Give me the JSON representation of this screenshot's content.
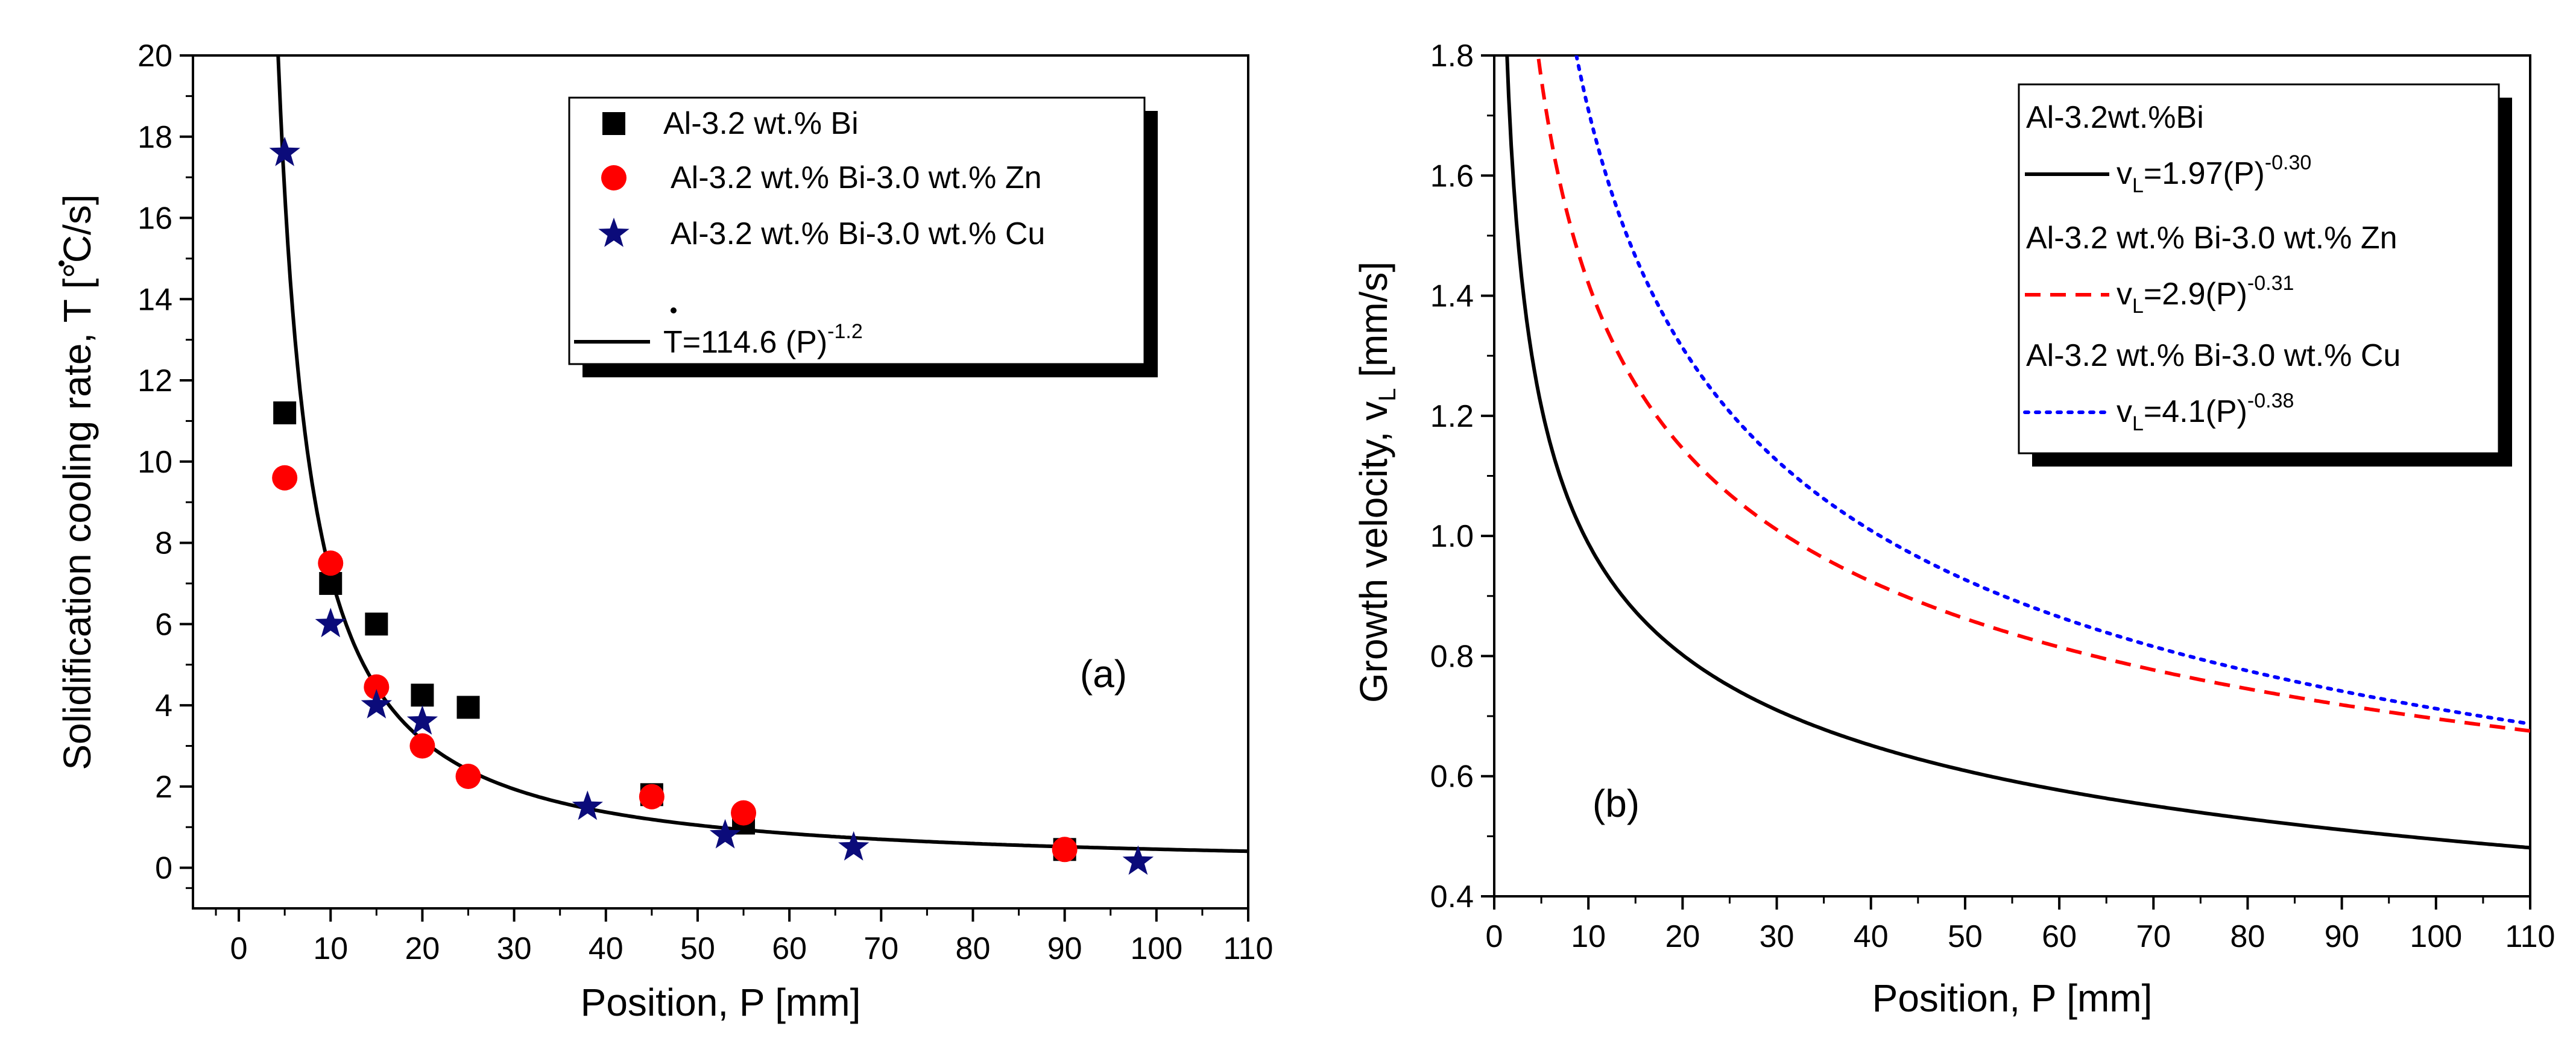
{
  "chart_data": [
    {
      "type": "scatter",
      "panel_label": "(a)",
      "xlabel": "Position, P [mm]",
      "ylabel_main": "Solidification cooling rate, ",
      "ylabel_symbol": "T",
      "ylabel_unit": " [°C/s]",
      "xlim": [
        -5,
        110
      ],
      "ylim": [
        -1,
        20
      ],
      "x_ticks": [
        0,
        10,
        20,
        30,
        40,
        50,
        60,
        70,
        80,
        90,
        100,
        110
      ],
      "x_tick_labels": [
        "0",
        "10",
        "20",
        "30",
        "40",
        "50",
        "60",
        "70",
        "80",
        "90",
        "100",
        "110"
      ],
      "y_ticks": [
        0,
        2,
        4,
        6,
        8,
        10,
        12,
        14,
        16,
        18,
        20
      ],
      "y_tick_labels": [
        "0",
        "2",
        "4",
        "6",
        "8",
        "10",
        "12",
        "14",
        "16",
        "18",
        "20"
      ],
      "series": [
        {
          "name": "Al-3.2 wt.% Bi",
          "marker": "square",
          "color": "#000000",
          "points": [
            [
              5,
              11.2
            ],
            [
              10,
              7.0
            ],
            [
              15,
              6.0
            ],
            [
              20,
              4.25
            ],
            [
              25,
              3.95
            ],
            [
              45,
              1.8
            ],
            [
              55,
              1.1
            ],
            [
              90,
              0.45
            ]
          ]
        },
        {
          "name": "Al-3.2 wt.% Bi-3.0 wt.% Zn",
          "marker": "circle",
          "color": "#ff0000",
          "points": [
            [
              5,
              9.6
            ],
            [
              10,
              7.5
            ],
            [
              15,
              4.45
            ],
            [
              20,
              3.0
            ],
            [
              25,
              2.25
            ],
            [
              45,
              1.75
            ],
            [
              55,
              1.35
            ],
            [
              90,
              0.45
            ]
          ]
        },
        {
          "name": "Al-3.2 wt.% Bi-3.0 wt.% Cu",
          "marker": "star",
          "color": "#0b0b7a",
          "points": [
            [
              5,
              17.6
            ],
            [
              10,
              6.0
            ],
            [
              15,
              4.0
            ],
            [
              20,
              3.6
            ],
            [
              38,
              1.5
            ],
            [
              53,
              0.8
            ],
            [
              67,
              0.5
            ],
            [
              98,
              0.15
            ]
          ]
        }
      ],
      "fit": {
        "name_prefix": "T",
        "name_body": "=114.6 (P)",
        "name_exp": "-1.2",
        "coefficient": 114.6,
        "exponent": -1.2,
        "x_start": 3.75,
        "x_end": 110,
        "color": "#000000"
      }
    },
    {
      "type": "line",
      "panel_label": "(b)",
      "xlabel": "Position, P [mm]",
      "ylabel_main": "Growth velocity, v",
      "ylabel_sub": "L",
      "ylabel_unit": " [mm/s]",
      "xlim": [
        0,
        110
      ],
      "ylim": [
        0.4,
        1.8
      ],
      "x_ticks": [
        0,
        10,
        20,
        30,
        40,
        50,
        60,
        70,
        80,
        90,
        100,
        110
      ],
      "x_tick_labels": [
        "0",
        "10",
        "20",
        "30",
        "40",
        "50",
        "60",
        "70",
        "80",
        "90",
        "100",
        "110"
      ],
      "y_ticks": [
        0.4,
        0.6,
        0.8,
        1.0,
        1.2,
        1.4,
        1.6,
        1.8
      ],
      "y_tick_labels": [
        "0.4",
        "0.6",
        "0.8",
        "1.0",
        "1.2",
        "1.4",
        "1.6",
        "1.8"
      ],
      "series": [
        {
          "name": "Al-3.2wt.%Bi",
          "eq_v": "v",
          "eq_sub": "L",
          "eq_body": "=1.97(P)",
          "eq_exp": "-0.30",
          "coefficient": 1.97,
          "exponent": -0.3,
          "style": "solid",
          "color": "#000000"
        },
        {
          "name": "Al-3.2 wt.% Bi-3.0 wt.% Zn",
          "eq_v": "v",
          "eq_sub": "L",
          "eq_body": "=2.9(P)",
          "eq_exp": "-0.31",
          "coefficient": 2.9,
          "exponent": -0.31,
          "style": "dashed",
          "color": "#ff0000"
        },
        {
          "name": "Al-3.2 wt.% Bi-3.0 wt.% Cu",
          "eq_v": "v",
          "eq_sub": "L",
          "eq_body": "=4.1(P)",
          "eq_exp": "-0.38",
          "coefficient": 4.1,
          "exponent": -0.38,
          "style": "dotted",
          "color": "#0000ff"
        }
      ]
    }
  ]
}
